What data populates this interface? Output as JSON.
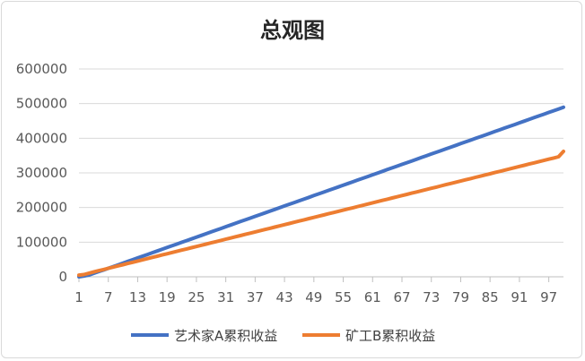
{
  "chart_data": {
    "type": "line",
    "title": "总观图",
    "xlabel": "",
    "ylabel": "",
    "x": [
      1,
      2,
      3,
      4,
      5,
      6,
      7,
      8,
      9,
      10,
      11,
      12,
      13,
      14,
      15,
      16,
      17,
      18,
      19,
      20,
      21,
      22,
      23,
      24,
      25,
      26,
      27,
      28,
      29,
      30,
      31,
      32,
      33,
      34,
      35,
      36,
      37,
      38,
      39,
      40,
      41,
      42,
      43,
      44,
      45,
      46,
      47,
      48,
      49,
      50,
      51,
      52,
      53,
      54,
      55,
      56,
      57,
      58,
      59,
      60,
      61,
      62,
      63,
      64,
      65,
      66,
      67,
      68,
      69,
      70,
      71,
      72,
      73,
      74,
      75,
      76,
      77,
      78,
      79,
      80,
      81,
      82,
      83,
      84,
      85,
      86,
      87,
      88,
      89,
      90,
      91,
      92,
      93,
      94,
      95,
      96,
      97,
      98,
      99,
      100
    ],
    "x_tick_labels": [
      "1",
      "7",
      "13",
      "19",
      "25",
      "31",
      "37",
      "43",
      "49",
      "55",
      "61",
      "67",
      "73",
      "79",
      "85",
      "91",
      "97"
    ],
    "ylim": [
      0,
      600000
    ],
    "y_tick_labels": [
      "0",
      "100000",
      "200000",
      "300000",
      "400000",
      "500000",
      "600000"
    ],
    "grid": true,
    "legend_position": "bottom",
    "series": [
      {
        "name": "艺术家A累积收益",
        "color": "#4472C4",
        "values": [
          0,
          2000,
          5000,
          10000,
          15000,
          19500,
          24500,
          29500,
          34500,
          39500,
          44500,
          49500,
          54500,
          59500,
          64500,
          69500,
          74500,
          79500,
          84500,
          89500,
          94500,
          99500,
          104500,
          109500,
          114500,
          119500,
          124500,
          129500,
          134500,
          139500,
          144500,
          149500,
          154500,
          159500,
          164500,
          169500,
          174500,
          179500,
          184500,
          189500,
          194500,
          199500,
          204500,
          209500,
          214500,
          219500,
          224500,
          229500,
          234500,
          239500,
          244500,
          249500,
          254500,
          259500,
          264500,
          269500,
          274500,
          279500,
          284500,
          289500,
          294500,
          299500,
          304500,
          309500,
          314500,
          319500,
          324500,
          329500,
          334500,
          339500,
          344500,
          349500,
          354500,
          359500,
          364500,
          369500,
          374500,
          379500,
          384500,
          389500,
          394500,
          399500,
          404500,
          409500,
          414500,
          419500,
          424500,
          429500,
          434500,
          439500,
          444500,
          449500,
          454500,
          459500,
          464500,
          469500,
          474500,
          479500,
          484500,
          489500
        ]
      },
      {
        "name": "矿工B累积收益",
        "color": "#ED7D31",
        "values": [
          5000,
          6500,
          10000,
          14000,
          17500,
          21000,
          24500,
          28000,
          31500,
          35000,
          38500,
          42000,
          45500,
          49000,
          52500,
          56000,
          59500,
          63000,
          66500,
          70000,
          73500,
          77000,
          80500,
          84000,
          87500,
          91000,
          94500,
          98000,
          101500,
          105000,
          108500,
          112000,
          115500,
          119000,
          122500,
          126000,
          129500,
          133000,
          136500,
          140000,
          143500,
          147000,
          150500,
          154000,
          157500,
          161000,
          164500,
          168000,
          171500,
          175000,
          178500,
          182000,
          185500,
          189000,
          192500,
          196000,
          199500,
          203000,
          206500,
          210000,
          213500,
          217000,
          220500,
          224000,
          227500,
          231000,
          234500,
          238000,
          241500,
          245000,
          248500,
          252000,
          255500,
          259000,
          262500,
          266000,
          269500,
          273000,
          276500,
          280000,
          283500,
          287000,
          290500,
          294000,
          297500,
          301000,
          304500,
          308000,
          311500,
          315000,
          318500,
          322000,
          325500,
          329000,
          332500,
          336000,
          339500,
          343000,
          346500,
          362000
        ]
      }
    ]
  }
}
